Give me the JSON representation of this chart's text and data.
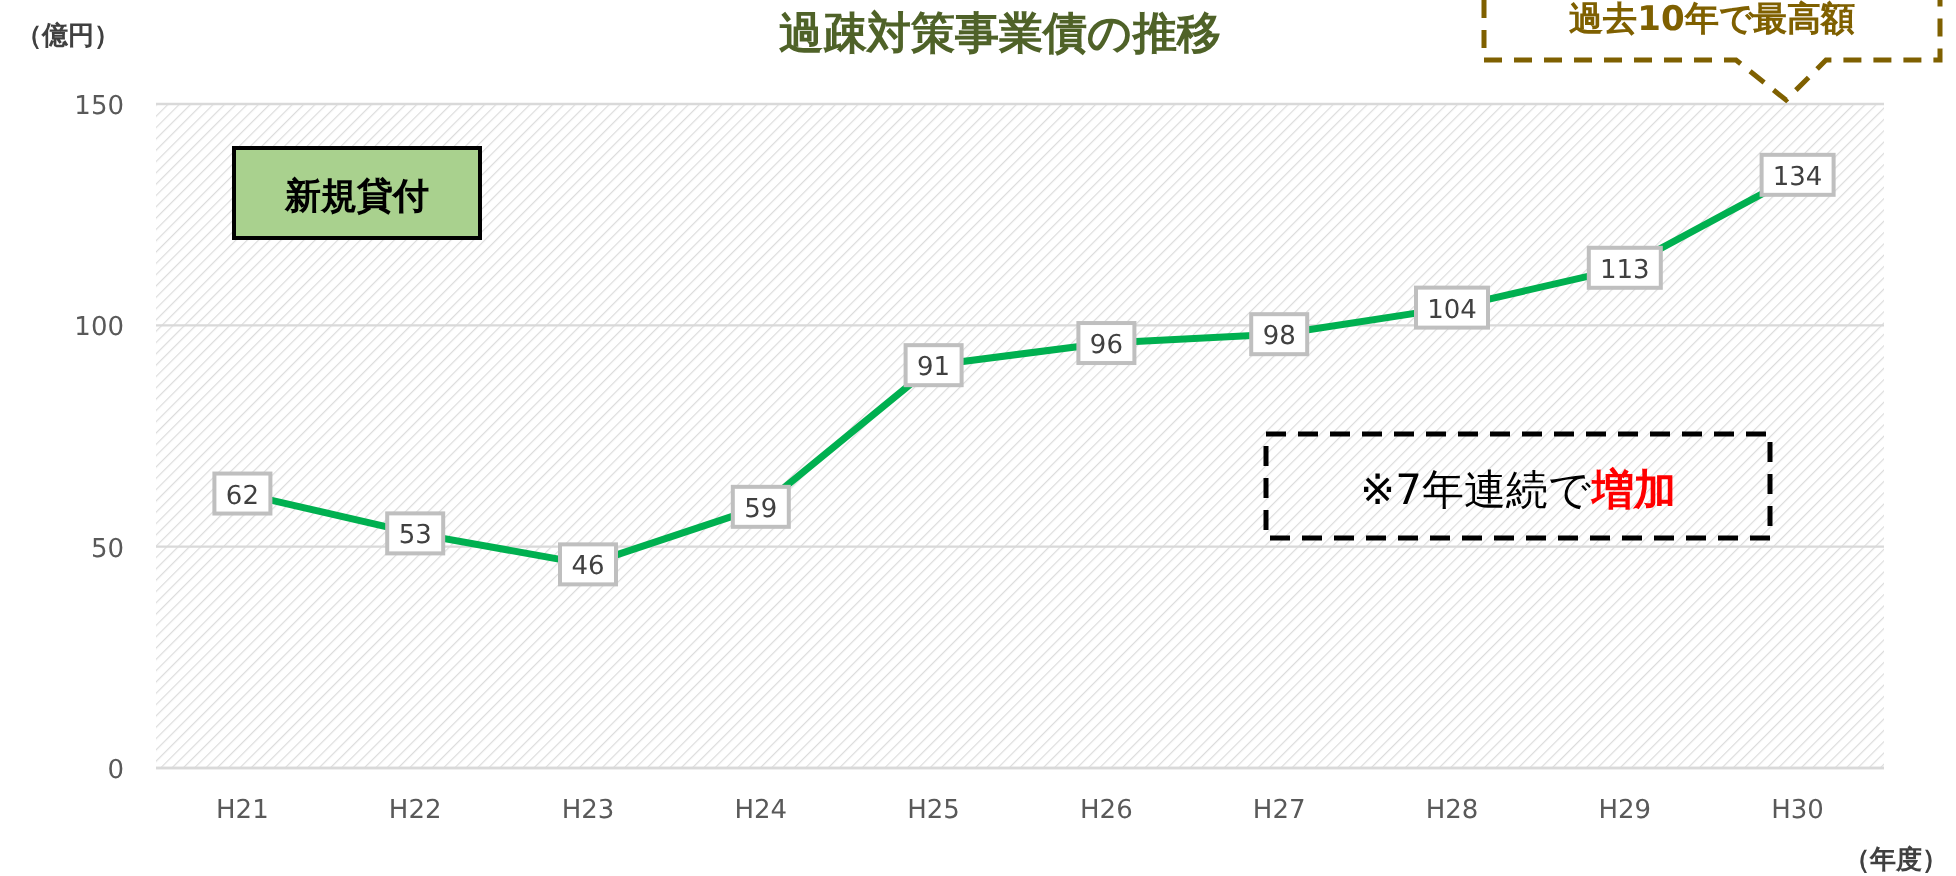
{
  "chart_data": {
    "type": "line",
    "title": "過疎対策事業債の推移",
    "ylabel": "（億円）",
    "xlabel": "（年度）",
    "categories": [
      "H21",
      "H22",
      "H23",
      "H24",
      "H25",
      "H26",
      "H27",
      "H28",
      "H29",
      "H30"
    ],
    "series": [
      {
        "color": "#00b050",
        "values": [
          62,
          53,
          46,
          59,
          91,
          96,
          98,
          104,
          113,
          134
        ]
      }
    ],
    "ylim": [
      0,
      150
    ],
    "yticks": [
      0,
      50,
      100,
      150
    ],
    "grid": "y",
    "data_labels": true,
    "marker": "square",
    "line_style": "solid",
    "annotations": [
      "新規貸付",
      "過去10年で最高額",
      "※7年連続で",
      "増加"
    ]
  }
}
